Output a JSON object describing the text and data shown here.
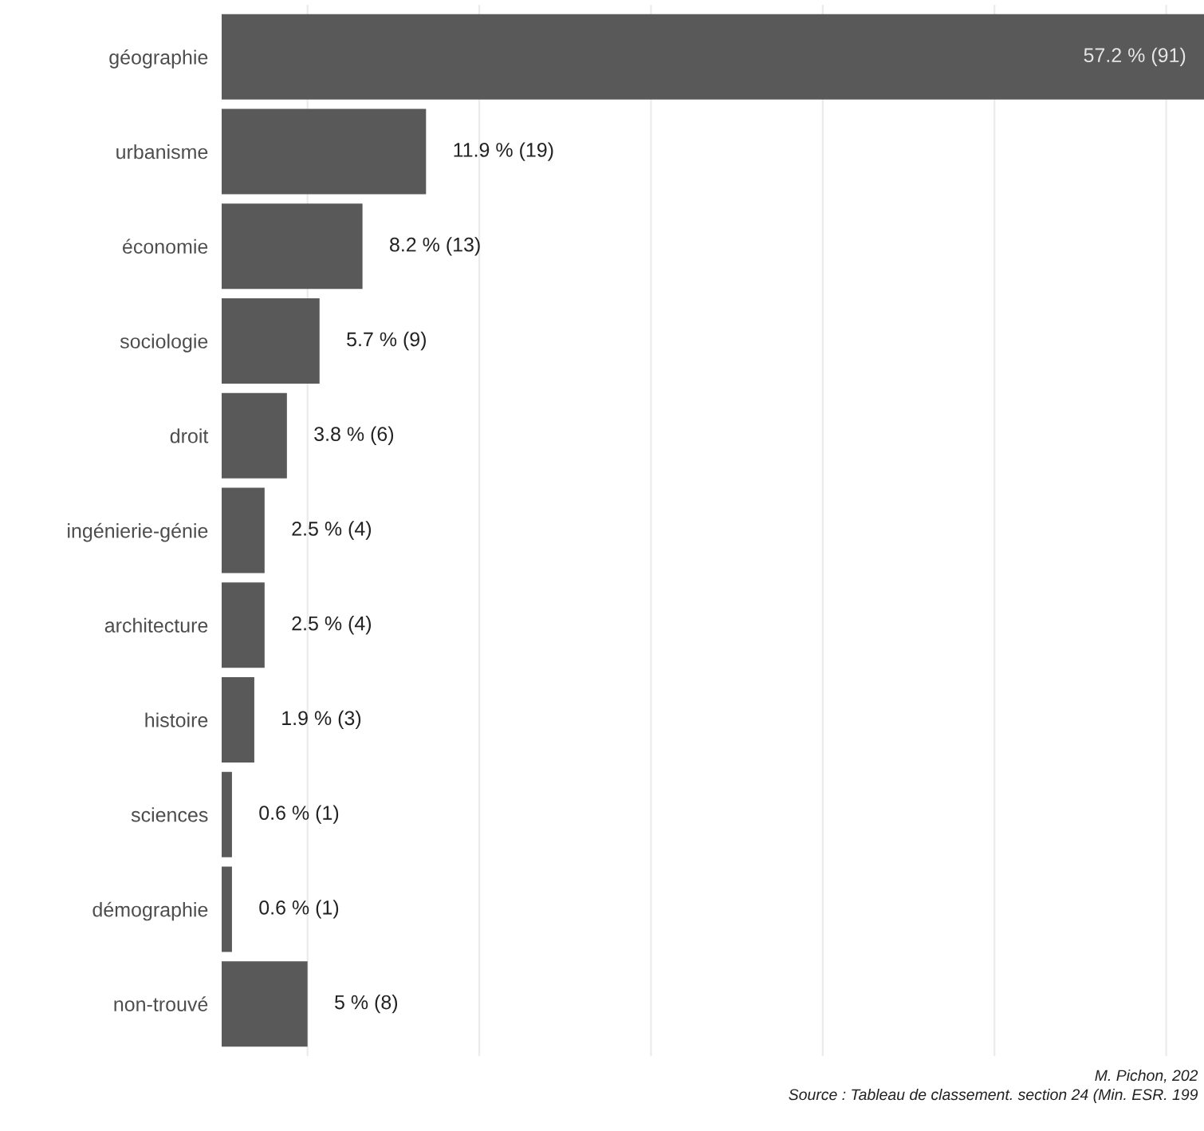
{
  "chart_data": {
    "type": "bar",
    "orientation": "horizontal",
    "categories": [
      "géographie",
      "urbanisme",
      "économie",
      "sociologie",
      "droit",
      "ingénierie-génie",
      "architecture",
      "histoire",
      "sciences",
      "démographie",
      "non-trouvé"
    ],
    "values": [
      57.2,
      11.9,
      8.2,
      5.7,
      3.8,
      2.5,
      2.5,
      1.9,
      0.6,
      0.6,
      5
    ],
    "value_labels": [
      "57.2 % (91)",
      "11.9 % (19)",
      "8.2 % (13)",
      "5.7 % (9)",
      "3.8 % (6)",
      "2.5 % (4)",
      "2.5 % (4)",
      "1.9 % (3)",
      "0.6 % (1)",
      "0.6 % (1)",
      "5 % (8)"
    ],
    "color": "#595959",
    "xlim": [
      0,
      57.2
    ],
    "xticks": [
      {
        "value": 5,
        "label": null
      },
      {
        "value": 15,
        "label": null
      },
      {
        "value": 25,
        "label": null
      },
      {
        "value": 35,
        "label": null
      },
      {
        "value": 45,
        "label": null
      },
      {
        "value": 55,
        "label": null
      }
    ],
    "grid": "x",
    "annotations": [
      "M. Pichon, 202",
      "Source : Tableau de classement. section 24 (Min. ESR. 199"
    ]
  }
}
